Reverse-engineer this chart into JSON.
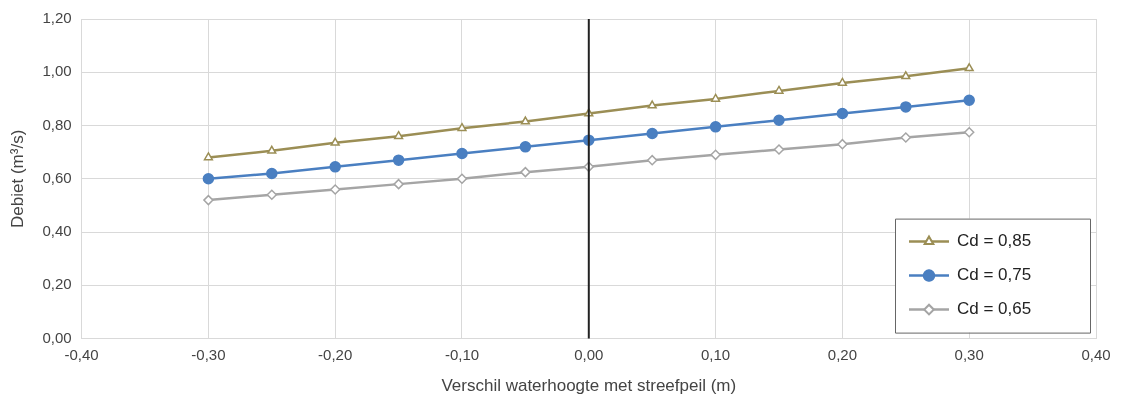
{
  "chart_data": {
    "type": "line",
    "xlabel": "Verschil waterhoogte met streefpeil (m)",
    "ylabel": "Debiet (m³/s)",
    "x": [
      -0.3,
      -0.25,
      -0.2,
      -0.15,
      -0.1,
      -0.05,
      0,
      0.05,
      0.1,
      0.15,
      0.2,
      0.25,
      0.3
    ],
    "series": [
      {
        "name": "Cd = 0,85",
        "color": "#9b8e55",
        "marker": "triangle",
        "values": [
          0.68,
          0.705,
          0.735,
          0.76,
          0.79,
          0.815,
          0.845,
          0.875,
          0.9,
          0.93,
          0.96,
          0.985,
          1.015
        ]
      },
      {
        "name": "Cd = 0,75",
        "color": "#4a7fc1",
        "marker": "circle",
        "values": [
          0.6,
          0.62,
          0.645,
          0.67,
          0.695,
          0.72,
          0.745,
          0.77,
          0.795,
          0.82,
          0.845,
          0.87,
          0.895
        ]
      },
      {
        "name": "Cd = 0,65",
        "color": "#a5a5a5",
        "marker": "diamond",
        "values": [
          0.52,
          0.54,
          0.56,
          0.58,
          0.6,
          0.625,
          0.645,
          0.67,
          0.69,
          0.71,
          0.73,
          0.755,
          0.775
        ]
      }
    ],
    "xlim": [
      -0.4,
      0.4
    ],
    "xticks": [
      {
        "value": -0.4,
        "label": "-0,40"
      },
      {
        "value": -0.3,
        "label": "-0,30"
      },
      {
        "value": -0.2,
        "label": "-0,20"
      },
      {
        "value": -0.1,
        "label": "-0,10"
      },
      {
        "value": 0,
        "label": "0,00"
      },
      {
        "value": 0.1,
        "label": "0,10"
      },
      {
        "value": 0.2,
        "label": "0,20"
      },
      {
        "value": 0.3,
        "label": "0,30"
      },
      {
        "value": 0.4,
        "label": "0,40"
      }
    ],
    "ylim": [
      0,
      1.2
    ],
    "yticks": [
      {
        "value": 0,
        "label": "0,00"
      },
      {
        "value": 0.2,
        "label": "0,20"
      },
      {
        "value": 0.4,
        "label": "0,40"
      },
      {
        "value": 0.6,
        "label": "0,60"
      },
      {
        "value": 0.8,
        "label": "0,80"
      },
      {
        "value": 1,
        "label": "1,00"
      },
      {
        "value": 1.2,
        "label": "1,20"
      }
    ],
    "ref_lines": [
      {
        "axis": "x",
        "value": 0,
        "color": "#222222"
      }
    ],
    "grid": true,
    "legend": "bottom right",
    "line_style": "solid"
  }
}
